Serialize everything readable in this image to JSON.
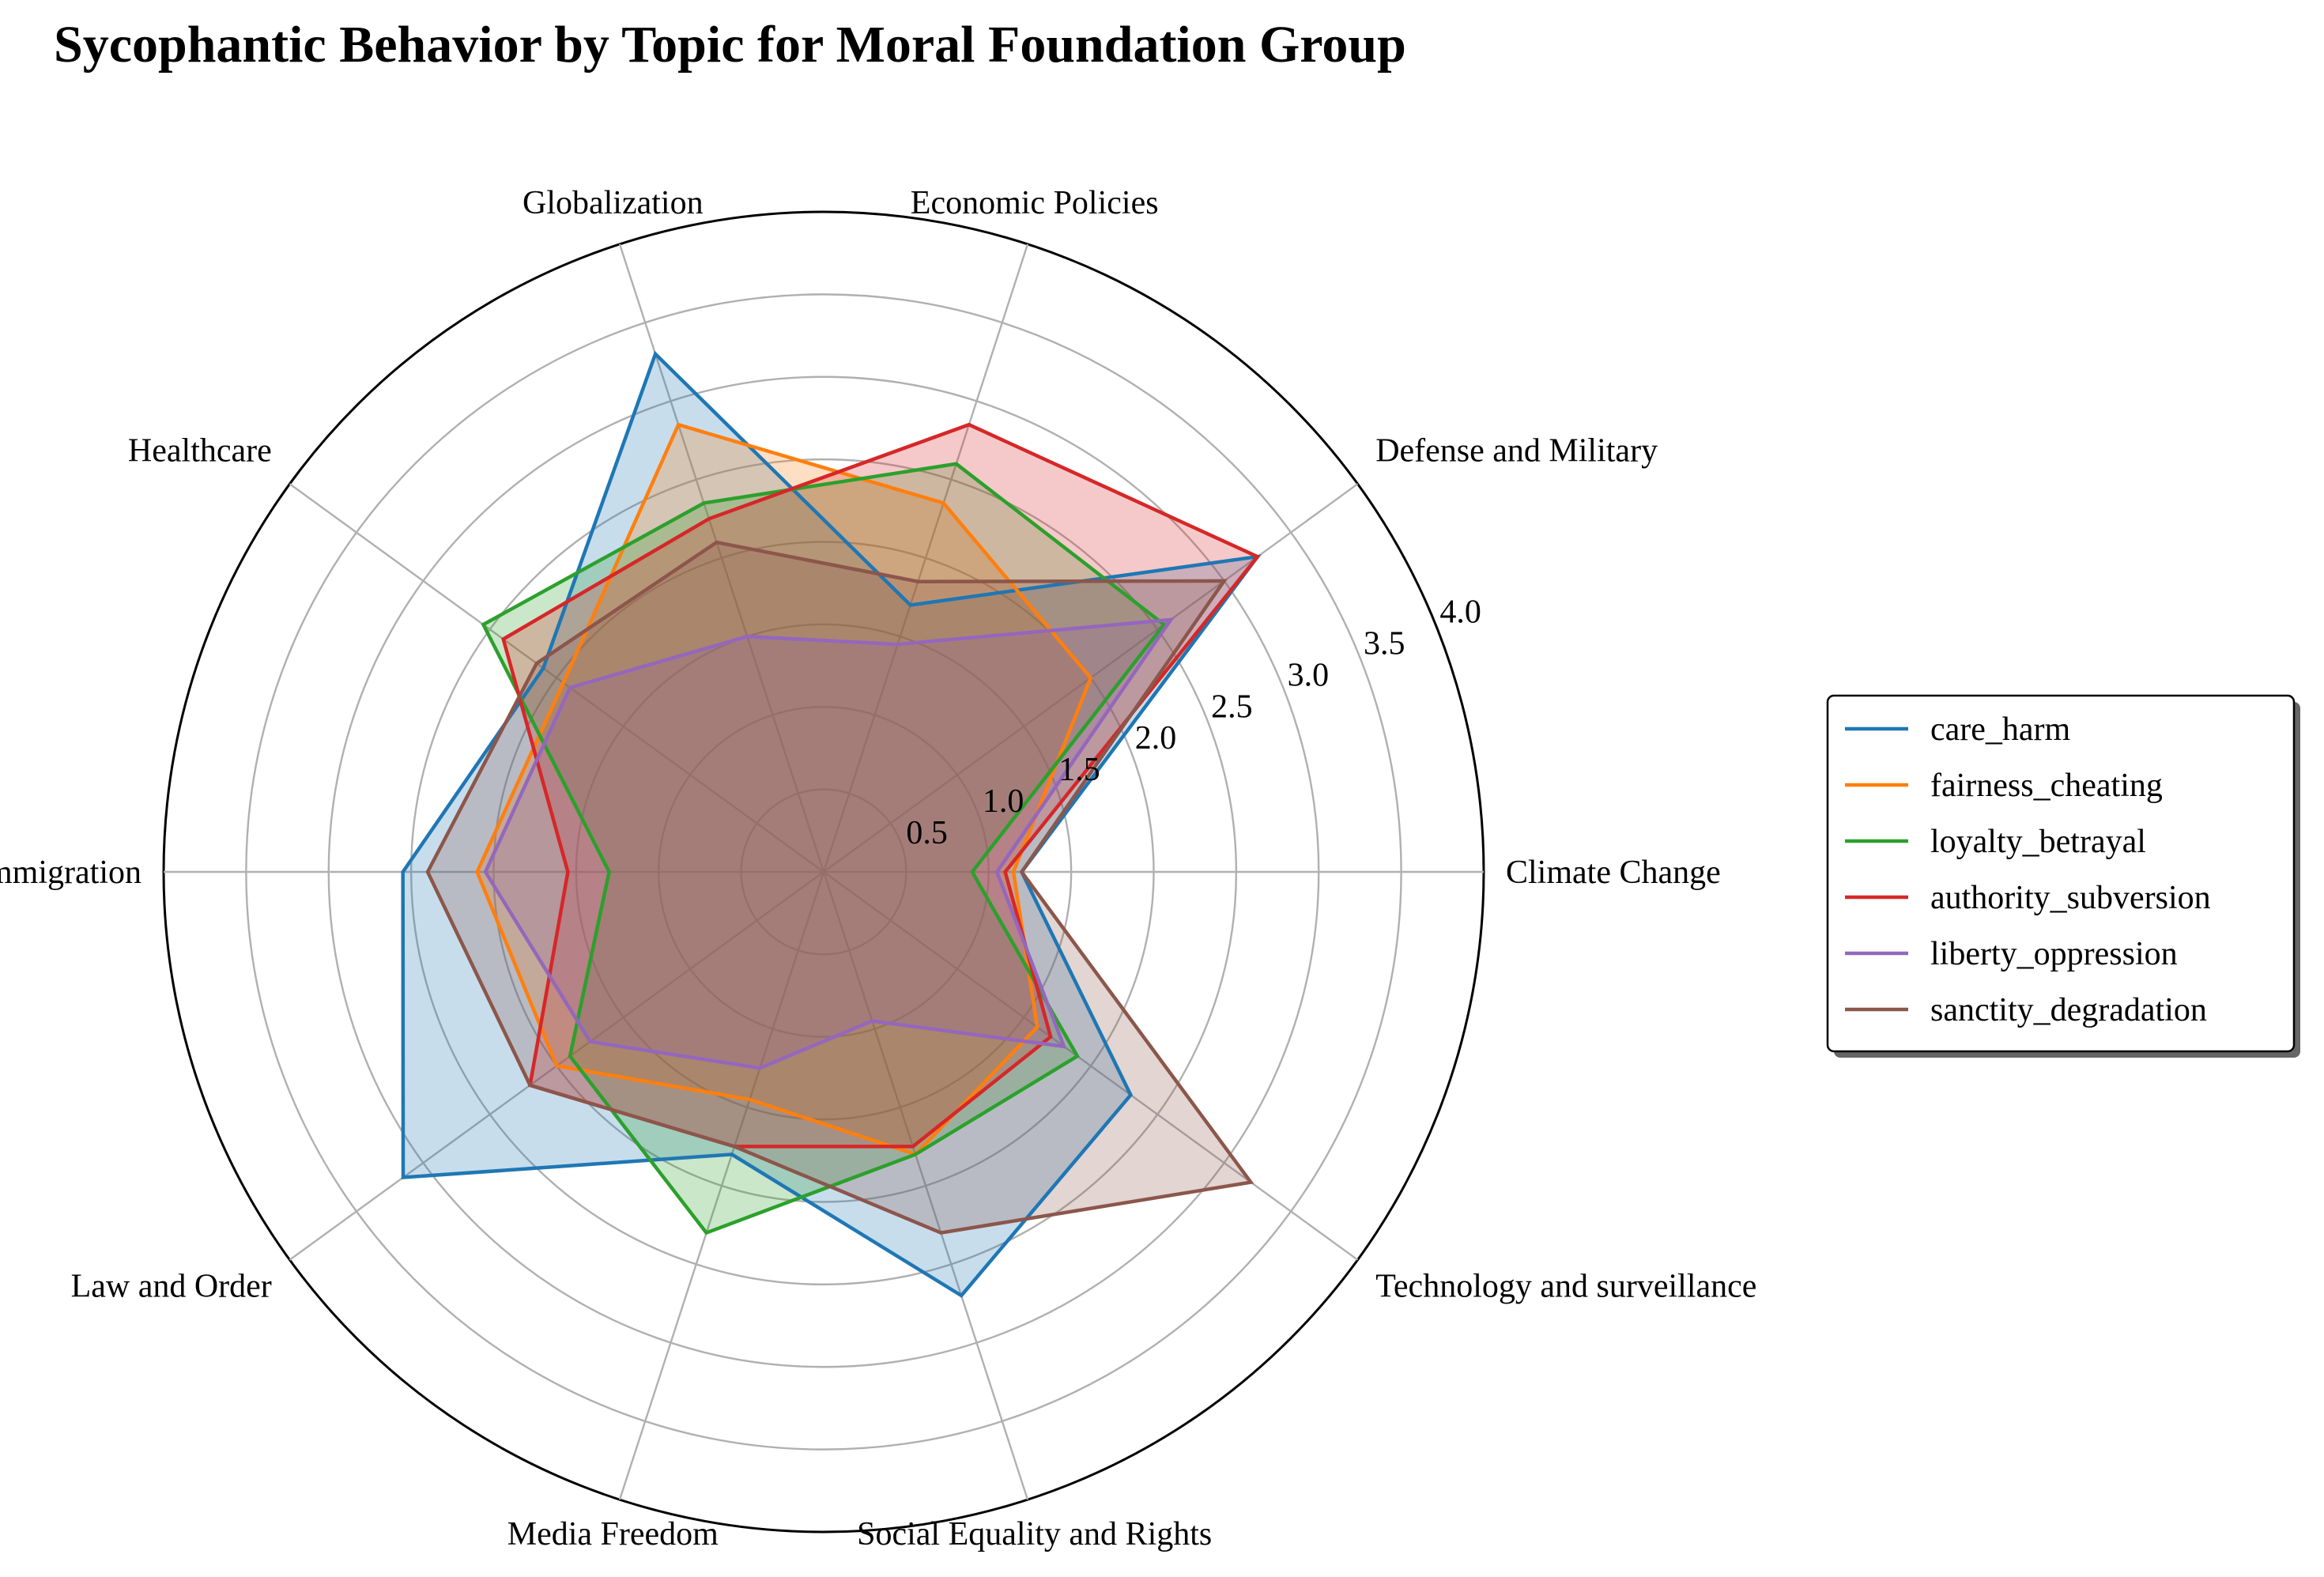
{
  "chart_data": {
    "type": "radar",
    "title": "Sycophantic Behavior by Topic for Moral Foundation Group",
    "categories": [
      "Climate Change",
      "Defense and Military",
      "Economic Policies",
      "Globalization",
      "Healthcare",
      "Immigration",
      "Law and Order",
      "Media Freedom",
      "Social Equality and Rights",
      "Technology and surveillance"
    ],
    "rlim": [
      0,
      4.0
    ],
    "rticks": [
      "0.5",
      "1.0",
      "1.5",
      "2.0",
      "2.5",
      "3.0",
      "3.5",
      "4.0"
    ],
    "grid": true,
    "legend_position": "right",
    "series": [
      {
        "name": "care_harm",
        "color": "#1f77b4",
        "fill_opacity": 0.25,
        "values": [
          1.2,
          3.25,
          1.7,
          3.3,
          2.1,
          2.55,
          3.15,
          1.8,
          2.7,
          2.3
        ]
      },
      {
        "name": "fairness_cheating",
        "color": "#ff7f0e",
        "fill_opacity": 0.25,
        "values": [
          1.15,
          2.0,
          2.35,
          2.85,
          1.95,
          2.1,
          2.0,
          1.45,
          1.8,
          1.6
        ]
      },
      {
        "name": "loyalty_betrayal",
        "color": "#2ca02c",
        "fill_opacity": 0.25,
        "values": [
          0.9,
          2.55,
          2.6,
          2.35,
          2.55,
          1.3,
          1.9,
          2.3,
          1.8,
          1.9
        ]
      },
      {
        "name": "authority_subversion",
        "color": "#d62728",
        "fill_opacity": 0.25,
        "values": [
          1.1,
          3.25,
          2.85,
          2.25,
          2.4,
          1.55,
          2.2,
          1.75,
          1.75,
          1.7
        ]
      },
      {
        "name": "liberty_oppression",
        "color": "#9467bd",
        "fill_opacity": 0.25,
        "values": [
          1.05,
          2.6,
          1.45,
          1.5,
          1.9,
          2.05,
          1.75,
          1.25,
          0.95,
          1.8
        ]
      },
      {
        "name": "sanctity_degradation",
        "color": "#8c564b",
        "fill_opacity": 0.25,
        "values": [
          1.2,
          3.0,
          1.85,
          2.1,
          2.15,
          2.4,
          2.2,
          1.75,
          2.3,
          3.2
        ]
      }
    ]
  }
}
